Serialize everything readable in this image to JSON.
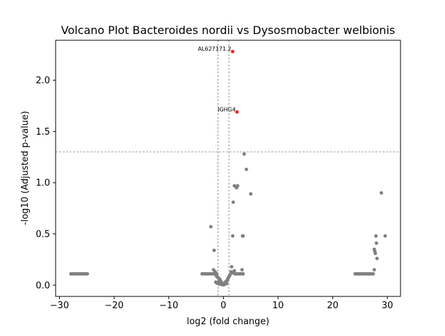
{
  "chart_data": {
    "type": "scatter",
    "title": "Volcano Plot Bacteroides nordii vs Dysosmobacter welbionis",
    "xlabel": "log2 (fold change)",
    "ylabel": "-log10 (Adjusted p-value)",
    "xlim": [
      -30.7,
      32.4
    ],
    "ylim": [
      -0.11,
      2.39
    ],
    "xticks": [
      -30,
      -20,
      -10,
      0,
      10,
      20,
      30
    ],
    "yticks": [
      0.0,
      0.5,
      1.0,
      1.5,
      2.0
    ],
    "grid": false,
    "legend": "none",
    "threshold_lines": {
      "horizontal_y": 1.3,
      "vertical_x": [
        -1,
        1
      ]
    },
    "colors": {
      "nonsignificant": "#808080",
      "significant": "#ff2020",
      "threshold_line": "#808080",
      "axis": "#000000"
    },
    "nonsignificant_points": [
      [
        -27.9,
        0.11
      ],
      [
        -27.6,
        0.11
      ],
      [
        -27.3,
        0.11
      ],
      [
        -27.0,
        0.11
      ],
      [
        -26.7,
        0.11
      ],
      [
        -26.4,
        0.11
      ],
      [
        -26.1,
        0.11
      ],
      [
        -25.8,
        0.11
      ],
      [
        -25.5,
        0.11
      ],
      [
        -25.2,
        0.11
      ],
      [
        -24.9,
        0.11
      ],
      [
        -3.9,
        0.11
      ],
      [
        -3.6,
        0.11
      ],
      [
        -3.3,
        0.11
      ],
      [
        -3.0,
        0.11
      ],
      [
        -2.7,
        0.11
      ],
      [
        -2.4,
        0.11
      ],
      [
        -2.1,
        0.11
      ],
      [
        -1.8,
        0.11
      ],
      [
        -1.5,
        0.11
      ],
      [
        -1.2,
        0.11
      ],
      [
        2.1,
        0.11
      ],
      [
        2.4,
        0.11
      ],
      [
        2.7,
        0.11
      ],
      [
        3.0,
        0.11
      ],
      [
        3.3,
        0.11
      ],
      [
        3.6,
        0.11
      ],
      [
        -1.8,
        0.15
      ],
      [
        -1.5,
        0.13
      ],
      [
        -1.3,
        0.09
      ],
      [
        -1.1,
        0.08
      ],
      [
        -0.9,
        0.07
      ],
      [
        -1.4,
        0.03
      ],
      [
        -1.2,
        0.02
      ],
      [
        -1.0,
        0.02
      ],
      [
        -0.8,
        0.04
      ],
      [
        -0.8,
        0.01
      ],
      [
        -0.7,
        0.06
      ],
      [
        -0.6,
        0.05
      ],
      [
        -0.6,
        0.02
      ],
      [
        -0.5,
        0.04
      ],
      [
        -0.5,
        0.01
      ],
      [
        -0.4,
        0.03
      ],
      [
        -0.3,
        0.02
      ],
      [
        -0.3,
        0.005
      ],
      [
        -0.2,
        0.01
      ],
      [
        -0.1,
        0.005
      ],
      [
        0.0,
        0.003
      ],
      [
        0.1,
        0.004
      ],
      [
        0.2,
        0.008
      ],
      [
        0.3,
        0.012
      ],
      [
        0.4,
        0.02
      ],
      [
        0.5,
        0.03
      ],
      [
        0.6,
        0.04
      ],
      [
        0.7,
        0.05
      ],
      [
        0.8,
        0.06
      ],
      [
        0.9,
        0.07
      ],
      [
        1.0,
        0.08
      ],
      [
        1.1,
        0.09
      ],
      [
        1.2,
        0.1
      ],
      [
        0.3,
        0.03
      ],
      [
        0.6,
        0.015
      ],
      [
        1.5,
        0.18
      ],
      [
        2.0,
        0.14
      ],
      [
        1.7,
        0.12
      ],
      [
        1.4,
        0.13
      ],
      [
        -2.3,
        0.57
      ],
      [
        -1.7,
        0.34
      ],
      [
        1.7,
        0.48
      ],
      [
        2.0,
        0.97
      ],
      [
        2.4,
        0.95
      ],
      [
        2.6,
        0.97
      ],
      [
        1.8,
        0.81
      ],
      [
        3.5,
        0.48
      ],
      [
        3.6,
        0.48
      ],
      [
        3.8,
        1.28
      ],
      [
        4.2,
        1.13
      ],
      [
        5.0,
        0.89
      ],
      [
        3.4,
        0.15
      ],
      [
        24.1,
        0.11
      ],
      [
        24.4,
        0.11
      ],
      [
        24.7,
        0.11
      ],
      [
        25.0,
        0.11
      ],
      [
        25.3,
        0.11
      ],
      [
        25.6,
        0.11
      ],
      [
        25.9,
        0.11
      ],
      [
        26.2,
        0.11
      ],
      [
        26.5,
        0.11
      ],
      [
        26.8,
        0.11
      ],
      [
        27.1,
        0.11
      ],
      [
        27.4,
        0.11
      ],
      [
        27.6,
        0.15
      ],
      [
        27.6,
        0.35
      ],
      [
        27.7,
        0.33
      ],
      [
        27.8,
        0.31
      ],
      [
        28.1,
        0.26
      ],
      [
        27.9,
        0.48
      ],
      [
        28.0,
        0.41
      ],
      [
        28.9,
        0.9
      ],
      [
        29.6,
        0.48
      ]
    ],
    "significant_points": [
      {
        "label": "AL627171.2",
        "x": 1.7,
        "y": 2.28
      },
      {
        "label": "IGHG4",
        "x": 2.5,
        "y": 1.69
      }
    ]
  }
}
